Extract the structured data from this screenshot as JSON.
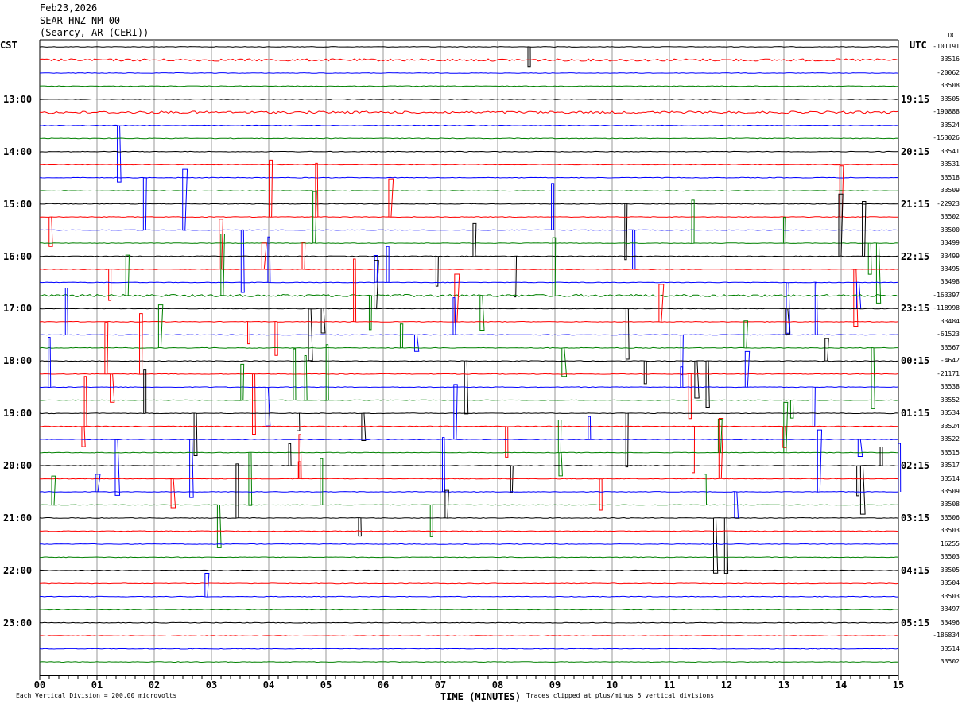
{
  "header": {
    "date": "Feb23,2026",
    "station": "SEAR HNZ NM 00",
    "location": "(Searcy, AR (CERI))"
  },
  "left_axis_title": "CST",
  "right_axis_title": "UTC",
  "dc_title": "DC",
  "footer": {
    "scale": "Each Vertical Division =  200.00 microvolts",
    "xlabel": "TIME (MINUTES)",
    "clip": "Traces clipped at plus/minus 5 vertical divisions"
  },
  "chart_data": {
    "type": "line",
    "xlabel": "TIME (MINUTES)",
    "x_ticks": [
      "00",
      "01",
      "02",
      "03",
      "04",
      "05",
      "06",
      "07",
      "08",
      "09",
      "10",
      "11",
      "12",
      "13",
      "14",
      "15"
    ],
    "xlim": [
      0,
      15
    ],
    "trace_colors": [
      "#000000",
      "#ff0000",
      "#0000ff",
      "#008000"
    ],
    "cst_labels": [
      "13:00",
      "14:00",
      "15:00",
      "16:00",
      "17:00",
      "18:00",
      "19:00",
      "20:00",
      "21:00",
      "22:00",
      "23:00"
    ],
    "utc_labels": [
      "19:15",
      "20:15",
      "21:15",
      "22:15",
      "23:15",
      "00:15",
      "01:15",
      "02:15",
      "03:15",
      "04:15",
      "05:15"
    ],
    "dc_offsets": [
      "-101191",
      "33516",
      "-20062",
      "33508",
      "33505",
      "-190888",
      "33524",
      "-153026",
      "33541",
      "33531",
      "33518",
      "33509",
      "-22923",
      "33502",
      "33500",
      "33499",
      "33499",
      "33495",
      "33498",
      "-163397",
      "-118998",
      "33484",
      "-61523",
      "33567",
      "-4642",
      "-21171",
      "33538",
      "33552",
      "33534",
      "33524",
      "33522",
      "33515",
      "33517",
      "33514",
      "33509",
      "33508",
      "33506",
      "33503",
      "16255",
      "33503",
      "33505",
      "33504",
      "33503",
      "33497",
      "33496",
      "-186834",
      "33514",
      "33502"
    ]
  }
}
